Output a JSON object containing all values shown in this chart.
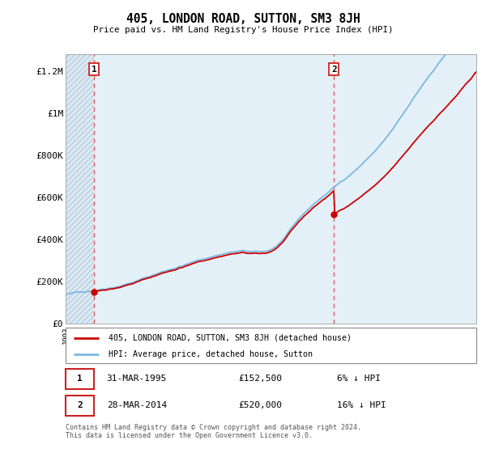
{
  "title": "405, LONDON ROAD, SUTTON, SM3 8JH",
  "subtitle": "Price paid vs. HM Land Registry's House Price Index (HPI)",
  "ylabel_ticks": [
    "£0",
    "£200K",
    "£400K",
    "£600K",
    "£800K",
    "£1M",
    "£1.2M"
  ],
  "ytick_values": [
    0,
    200000,
    400000,
    600000,
    800000,
    1000000,
    1200000
  ],
  "ylim": [
    0,
    1280000
  ],
  "xlim_start": 1993,
  "xlim_end": 2025.5,
  "hpi_color": "#7ab8e0",
  "price_color": "#cc0000",
  "vline_color": "#e06060",
  "sale1_year": 1995.24,
  "sale1_price": 152500,
  "sale2_year": 2014.24,
  "sale2_price": 520000,
  "annotation1_label": "1",
  "annotation1_date": "31-MAR-1995",
  "annotation1_price": "£152,500",
  "annotation1_hpi": "6% ↓ HPI",
  "annotation2_label": "2",
  "annotation2_date": "28-MAR-2014",
  "annotation2_price": "£520,000",
  "annotation2_hpi": "16% ↓ HPI",
  "legend_label1": "405, LONDON ROAD, SUTTON, SM3 8JH (detached house)",
  "legend_label2": "HPI: Average price, detached house, Sutton",
  "footer": "Contains HM Land Registry data © Crown copyright and database right 2024.\nThis data is licensed under the Open Government Licence v3.0."
}
